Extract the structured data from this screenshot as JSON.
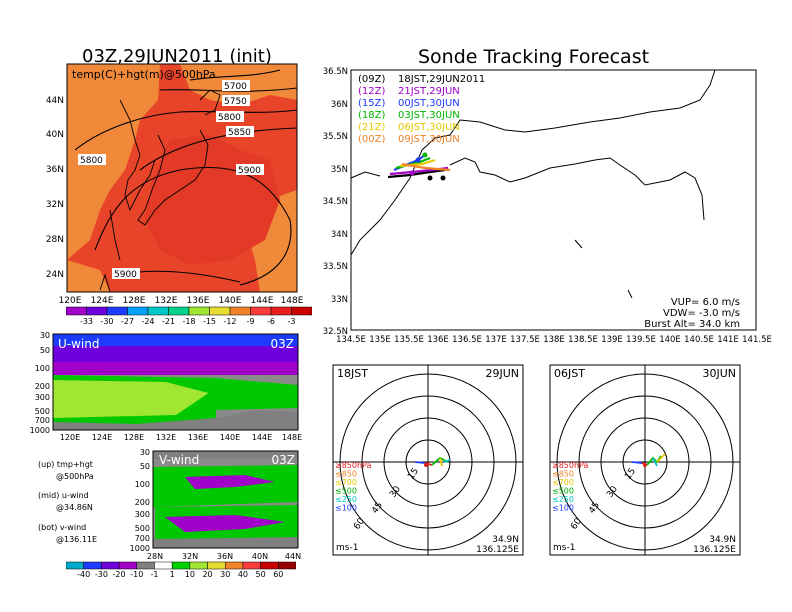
{
  "left_title": "03Z,29JUN2011 (init)",
  "right_title": "Sonde Tracking Forecast",
  "map500": {
    "label": "temp(C)+hgt(m)@500hPa",
    "lat_ticks": [
      "44N",
      "40N",
      "36N",
      "32N",
      "28N",
      "24N"
    ],
    "lon_ticks": [
      "120E",
      "124E",
      "128E",
      "132E",
      "136E",
      "140E",
      "144E",
      "148E"
    ],
    "contours": [
      "5700",
      "5750",
      "5800",
      "5850",
      "5800",
      "5900",
      "5900"
    ],
    "colorbar": [
      "-33",
      "-30",
      "-27",
      "-24",
      "-21",
      "-18",
      "-15",
      "-12",
      "-9",
      "-6",
      "-3"
    ],
    "colorbar_colors": [
      "#a000c8",
      "#6e00dc",
      "#1e3cff",
      "#00a0ff",
      "#00c8c8",
      "#00d28c",
      "#a0e632",
      "#e6dc32",
      "#f08228",
      "#fa3c3c",
      "#e61e1e",
      "#c80000"
    ]
  },
  "uwind": {
    "label": "U-wind",
    "time": "03Z",
    "p_ticks": [
      "30",
      "50",
      "100",
      "200",
      "300",
      "500",
      "700",
      "1000"
    ],
    "lon_ticks": [
      "120E",
      "124E",
      "128E",
      "132E",
      "136E",
      "140E",
      "144E",
      "148E"
    ]
  },
  "vwind": {
    "label": "V-wind",
    "time": "03Z",
    "p_ticks": [
      "30",
      "50",
      "100",
      "200",
      "300",
      "500",
      "700",
      "1000"
    ],
    "lat_ticks": [
      "28N",
      "32N",
      "36N",
      "40N",
      "44N"
    ]
  },
  "notes": [
    {
      "line1": "(up) tmp+hgt",
      "line2": "@500hPa"
    },
    {
      "line1": "(mid) u-wind",
      "line2": "@34.86N"
    },
    {
      "line1": "(bot) v-wind",
      "line2": "@136.11E"
    }
  ],
  "wind_colorbar": [
    "-40",
    "-30",
    "-20",
    "-10",
    "-1",
    "1",
    "10",
    "20",
    "30",
    "40",
    "50",
    "60"
  ],
  "wind_colorbar_colors": [
    "#00aac8",
    "#1e3cff",
    "#6e00dc",
    "#a000c8",
    "#808080",
    "#ffffff",
    "#00d200",
    "#a0e632",
    "#e6dc32",
    "#f08228",
    "#fa3c3c",
    "#c80000",
    "#960000"
  ],
  "track": {
    "legend": [
      {
        "tag": "(09Z)",
        "text": "18JST,29JUN2011",
        "color": "#000000"
      },
      {
        "tag": "(12Z)",
        "text": "21JST,29JUN",
        "color": "#a000c8"
      },
      {
        "tag": "(15Z)",
        "text": "00JST,30JUN",
        "color": "#1e3cff"
      },
      {
        "tag": "(18Z)",
        "text": "03JST,30JUN",
        "color": "#00b400"
      },
      {
        "tag": "(21Z)",
        "text": "06JST,30JUN",
        "color": "#e6c800"
      },
      {
        "tag": "(00Z)",
        "text": "09JST,30JUN",
        "color": "#f08228"
      }
    ],
    "lat_ticks": [
      "36.5N",
      "36N",
      "35.5N",
      "35N",
      "34.5N",
      "34N",
      "33.5N",
      "33N",
      "32.5N"
    ],
    "lon_ticks": [
      "134.5E",
      "135E",
      "135.5E",
      "136E",
      "136.5E",
      "137E",
      "137.5E",
      "138E",
      "138.5E",
      "139E",
      "139.5E",
      "140E",
      "140.5E",
      "141E",
      "141.5E"
    ],
    "params": [
      "VUP=  6.0  m/s",
      "VDW= -3.0  m/s",
      "Burst Alt= 34.0  km"
    ]
  },
  "hodo_left": {
    "time": "18JST",
    "date": "29JUN",
    "rings": [
      "15",
      "30",
      "45",
      "60"
    ],
    "unit": "ms-1",
    "loc1": "34.9N",
    "loc2": "136.125E",
    "levels": [
      {
        "label": "≥850hPa",
        "color": "#e61e1e"
      },
      {
        "label": "≤850",
        "color": "#f08228"
      },
      {
        "label": "≤700",
        "color": "#e6c800"
      },
      {
        "label": "≤500",
        "color": "#00b400"
      },
      {
        "label": "≤250",
        "color": "#00c8c8"
      },
      {
        "label": "≤100",
        "color": "#1e3cff"
      }
    ]
  },
  "hodo_right": {
    "time": "06JST",
    "date": "30JUN",
    "rings": [
      "15",
      "30",
      "45",
      "60"
    ],
    "unit": "ms-1",
    "loc1": "34.9N",
    "loc2": "136.125E",
    "levels": [
      {
        "label": "≥850hPa",
        "color": "#e61e1e"
      },
      {
        "label": "≤850",
        "color": "#f08228"
      },
      {
        "label": "≤700",
        "color": "#e6c800"
      },
      {
        "label": "≤500",
        "color": "#00b400"
      },
      {
        "label": "≤250",
        "color": "#00c8c8"
      },
      {
        "label": "≤100",
        "color": "#1e3cff"
      }
    ]
  },
  "chart_data": {
    "type": "other",
    "title": "Sonde Tracking Forecast",
    "init": "03Z,29JUN2011 (init)",
    "parameters": {
      "VUP_m_s": 6.0,
      "VDW_m_s": -3.0,
      "burst_alt_km": 34.0
    },
    "track_axes": {
      "lon_range": [
        134.5,
        141.5
      ],
      "lat_range": [
        32.5,
        36.5
      ]
    },
    "launch_point": {
      "lon": 136.125,
      "lat": 34.9
    }
  }
}
